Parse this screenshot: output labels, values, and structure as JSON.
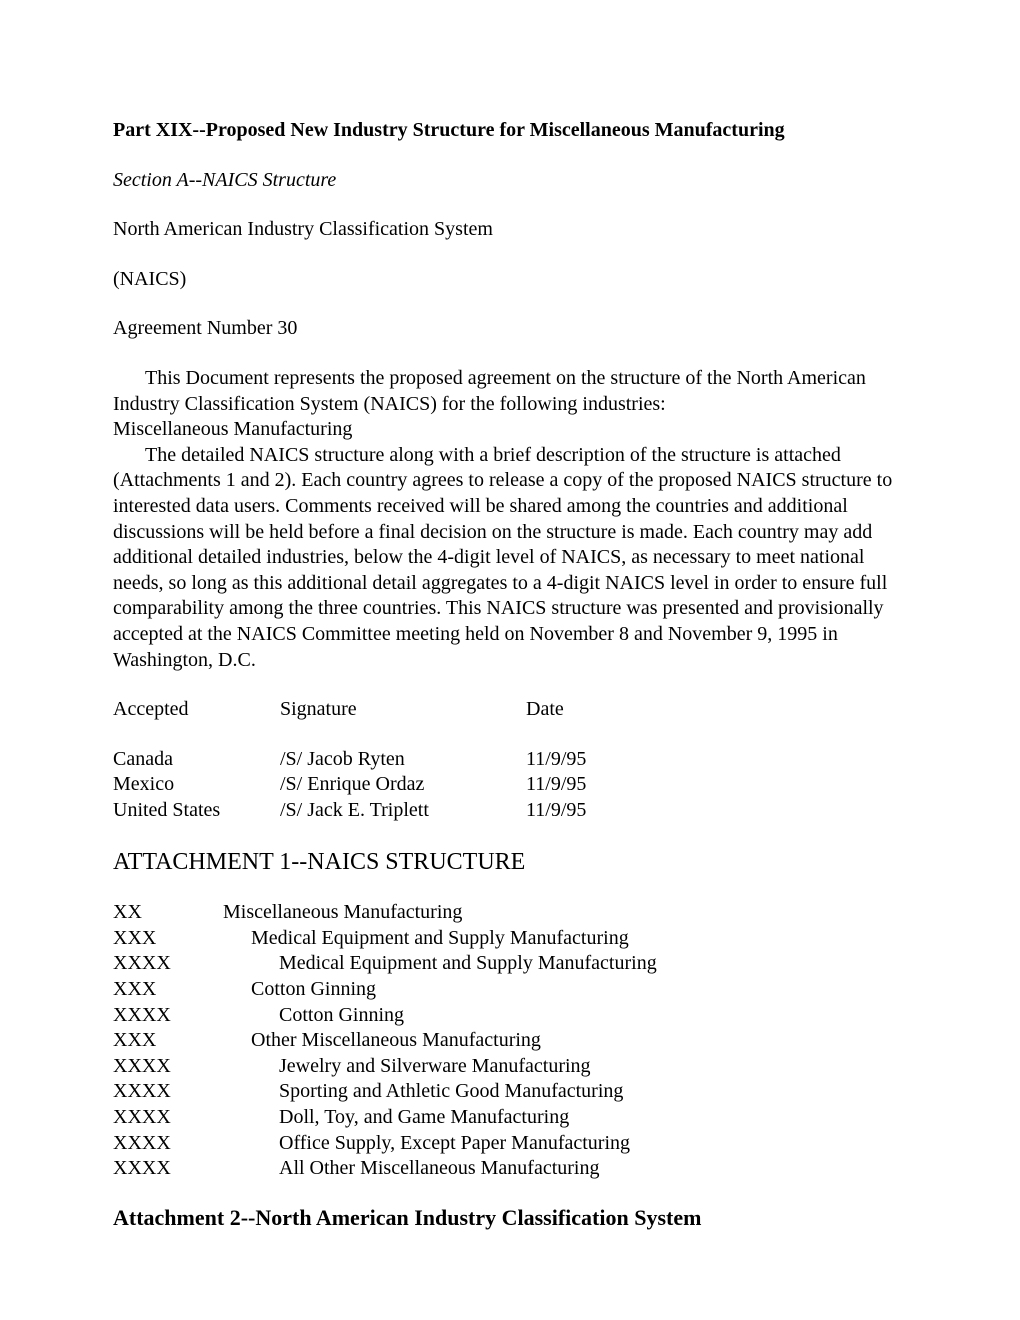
{
  "header": {
    "title": "Part XIX--Proposed New Industry Structure for Miscellaneous Manufacturing",
    "section": "Section A--NAICS Structure",
    "line1": "North American Industry Classification System",
    "line2": "(NAICS)",
    "line3": "Agreement Number 30"
  },
  "body": {
    "para1a": "This Document represents the proposed agreement on the structure of the North American Industry Classification System (NAICS) for the following industries:",
    "para1b": "Miscellaneous Manufacturing",
    "para2": "The detailed NAICS structure along with a brief description of the structure is attached (Attachments 1 and 2).  Each country agrees to release a copy of the proposed NAICS structure to interested data users.  Comments received will be shared among the countries and additional discussions will be held before a final decision on the structure is made.  Each country may add additional detailed industries, below the 4-digit level of NAICS, as necessary to meet national needs, so long as this additional detail aggregates to a 4-digit NAICS level in order to ensure full comparability among the three countries.  This NAICS structure was presented and provisionally accepted at the NAICS Committee meeting held on November 8 and November 9, 1995 in Washington, D.C."
  },
  "signatures": {
    "header": {
      "col1": "Accepted",
      "col2": "Signature",
      "col3": "Date"
    },
    "rows": [
      {
        "country": "Canada",
        "sig": "/S/   Jacob Ryten",
        "date": "11/9/95"
      },
      {
        "country": "Mexico",
        "sig": "/S/   Enrique Ordaz",
        "date": "11/9/95"
      },
      {
        "country": "United States",
        "sig": "/S/   Jack E.  Triplett",
        "date": "11/9/95"
      }
    ]
  },
  "attachment1": {
    "title": "ATTACHMENT 1--NAICS STRUCTURE",
    "rows": [
      {
        "code": "XX",
        "indent": 0,
        "desc": "Miscellaneous Manufacturing"
      },
      {
        "code": "XXX",
        "indent": 1,
        "desc": "Medical Equipment and Supply Manufacturing"
      },
      {
        "code": "XXXX",
        "indent": 2,
        "desc": "Medical Equipment and Supply Manufacturing"
      },
      {
        "code": "XXX",
        "indent": 1,
        "desc": "Cotton Ginning"
      },
      {
        "code": "XXXX",
        "indent": 2,
        "desc": "Cotton Ginning"
      },
      {
        "code": "XXX",
        "indent": 1,
        "desc": "Other Miscellaneous Manufacturing"
      },
      {
        "code": "XXXX",
        "indent": 2,
        "desc": "Jewelry and Silverware Manufacturing"
      },
      {
        "code": "XXXX",
        "indent": 2,
        "desc": "Sporting and Athletic Good Manufacturing"
      },
      {
        "code": "XXXX",
        "indent": 2,
        "desc": "Doll, Toy, and Game Manufacturing"
      },
      {
        "code": "XXXX",
        "indent": 2,
        "desc": "Office Supply, Except Paper Manufacturing"
      },
      {
        "code": "XXXX",
        "indent": 2,
        "desc": "All Other Miscellaneous Manufacturing"
      }
    ]
  },
  "attachment2": {
    "title": "Attachment 2--North American Industry Classification System"
  }
}
